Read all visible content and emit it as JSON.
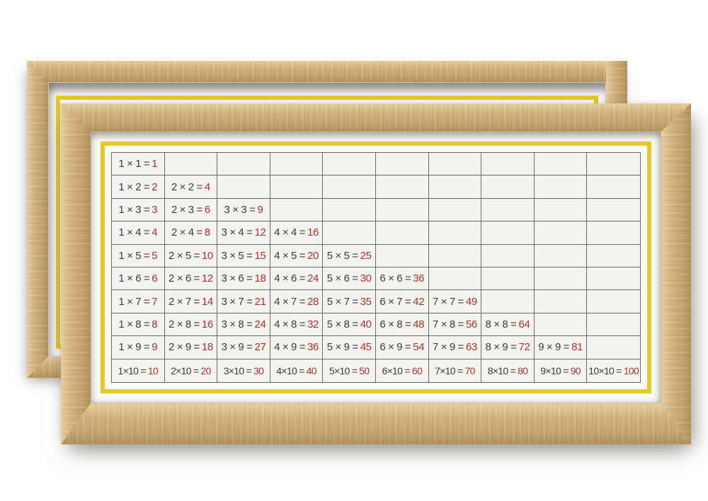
{
  "colors": {
    "background": "#ffffff",
    "wood": "#d7bb86",
    "wood_dark": "#c8a56d",
    "card": "#fcfbf8",
    "cell": "#f4f3f0",
    "grid_line": "#6a6a6a",
    "yellow": "#e5c92a",
    "ink": "#3b3b3b",
    "red": "#a93329"
  },
  "table": {
    "rows_count": 10,
    "columns_count": 10,
    "rows": [
      [
        {
          "eq": "1 × 1 =",
          "res": "1"
        },
        null,
        null,
        null,
        null,
        null,
        null,
        null,
        null,
        null
      ],
      [
        {
          "eq": "1 × 2 =",
          "res": "2"
        },
        {
          "eq": "2 × 2 =",
          "res": "4"
        },
        null,
        null,
        null,
        null,
        null,
        null,
        null,
        null
      ],
      [
        {
          "eq": "1 × 3 =",
          "res": "3"
        },
        {
          "eq": "2 × 3 =",
          "res": "6"
        },
        {
          "eq": "3 × 3 =",
          "res": "9"
        },
        null,
        null,
        null,
        null,
        null,
        null,
        null
      ],
      [
        {
          "eq": "1 × 4 =",
          "res": "4"
        },
        {
          "eq": "2 × 4 =",
          "res": "8"
        },
        {
          "eq": "3 × 4 =",
          "res": "12"
        },
        {
          "eq": "4 × 4 =",
          "res": "16"
        },
        null,
        null,
        null,
        null,
        null,
        null
      ],
      [
        {
          "eq": "1 × 5 =",
          "res": "5"
        },
        {
          "eq": "2 × 5 =",
          "res": "10"
        },
        {
          "eq": "3 × 5 =",
          "res": "15"
        },
        {
          "eq": "4 × 5 =",
          "res": "20"
        },
        {
          "eq": "5 × 5 =",
          "res": "25"
        },
        null,
        null,
        null,
        null,
        null
      ],
      [
        {
          "eq": "1 × 6 =",
          "res": "6"
        },
        {
          "eq": "2 × 6 =",
          "res": "12"
        },
        {
          "eq": "3 × 6 =",
          "res": "18"
        },
        {
          "eq": "4 × 6 =",
          "res": "24"
        },
        {
          "eq": "5 × 6 =",
          "res": "30"
        },
        {
          "eq": "6 × 6 =",
          "res": "36"
        },
        null,
        null,
        null,
        null
      ],
      [
        {
          "eq": "1 × 7 =",
          "res": "7"
        },
        {
          "eq": "2 × 7 =",
          "res": "14"
        },
        {
          "eq": "3 × 7 =",
          "res": "21"
        },
        {
          "eq": "4 × 7 =",
          "res": "28"
        },
        {
          "eq": "5 × 7 =",
          "res": "35"
        },
        {
          "eq": "6 × 7 =",
          "res": "42"
        },
        {
          "eq": "7 × 7 =",
          "res": "49"
        },
        null,
        null,
        null
      ],
      [
        {
          "eq": "1 × 8 =",
          "res": "8"
        },
        {
          "eq": "2 × 8 =",
          "res": "16"
        },
        {
          "eq": "3 × 8 =",
          "res": "24"
        },
        {
          "eq": "4 × 8 =",
          "res": "32"
        },
        {
          "eq": "5 × 8 =",
          "res": "40"
        },
        {
          "eq": "6 × 8 =",
          "res": "48"
        },
        {
          "eq": "7 × 8 =",
          "res": "56"
        },
        {
          "eq": "8 × 8 =",
          "res": "64"
        },
        null,
        null
      ],
      [
        {
          "eq": "1 × 9 =",
          "res": "9"
        },
        {
          "eq": "2 × 9 =",
          "res": "18"
        },
        {
          "eq": "3 × 9 =",
          "res": "27"
        },
        {
          "eq": "4 × 9 =",
          "res": "36"
        },
        {
          "eq": "5 × 9 =",
          "res": "45"
        },
        {
          "eq": "6 × 9 =",
          "res": "54"
        },
        {
          "eq": "7 × 9 =",
          "res": "63"
        },
        {
          "eq": "8 × 9 =",
          "res": "72"
        },
        {
          "eq": "9 × 9 =",
          "res": "81"
        },
        null
      ],
      [
        {
          "eq": "1×10 =",
          "res": "10"
        },
        {
          "eq": "2×10 =",
          "res": "20"
        },
        {
          "eq": "3×10 =",
          "res": "30"
        },
        {
          "eq": "4×10 =",
          "res": "40"
        },
        {
          "eq": "5×10 =",
          "res": "50"
        },
        {
          "eq": "6×10 =",
          "res": "60"
        },
        {
          "eq": "7×10 =",
          "res": "70"
        },
        {
          "eq": "8×10 =",
          "res": "80"
        },
        {
          "eq": "9×10 =",
          "res": "90"
        },
        {
          "eq": "10×10 =",
          "res": "100"
        }
      ]
    ]
  }
}
